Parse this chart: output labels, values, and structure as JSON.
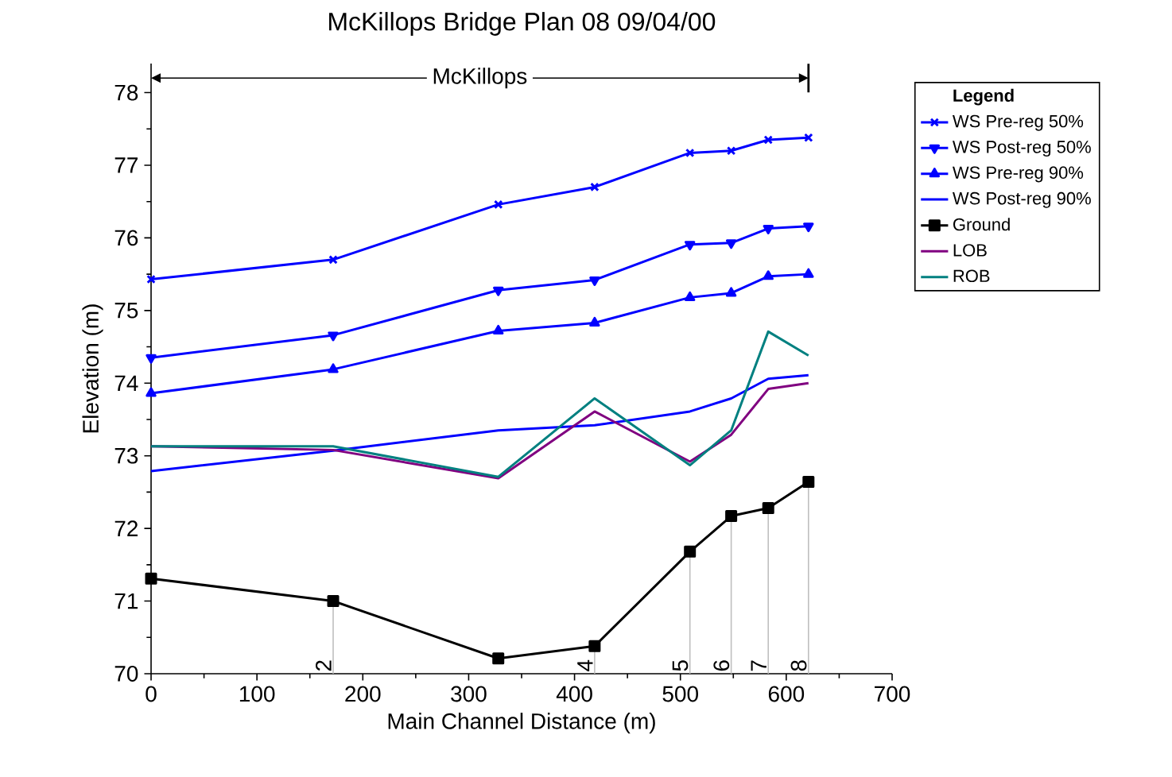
{
  "chart_data": {
    "type": "line",
    "title": "McKillops Bridge   Plan 08     09/04/00",
    "xlabel": "Main Channel Distance (m)",
    "ylabel": "Elevation (m)",
    "legend_title": "Legend",
    "legend": "right",
    "xlim": [
      0,
      700
    ],
    "ylim": [
      70,
      78.4
    ],
    "xticks": [
      0,
      100,
      200,
      300,
      400,
      500,
      600,
      700
    ],
    "yticks": [
      70,
      71,
      72,
      73,
      74,
      75,
      76,
      77,
      78
    ],
    "grid": false,
    "x": [
      0,
      172,
      328,
      419,
      509,
      548,
      583,
      621
    ],
    "series": [
      {
        "name": "WS  Pre-reg 50%",
        "color": "#0000ff",
        "marker": "cross",
        "values": [
          75.43,
          75.7,
          76.46,
          76.7,
          77.17,
          77.2,
          77.35,
          77.38
        ]
      },
      {
        "name": "WS  Post-reg 50%",
        "color": "#0000ff",
        "marker": "triangle-down",
        "values": [
          74.35,
          74.66,
          75.28,
          75.42,
          75.91,
          75.93,
          76.13,
          76.16
        ]
      },
      {
        "name": "WS  Pre-reg 90%",
        "color": "#0000ff",
        "marker": "triangle",
        "values": [
          73.86,
          74.19,
          74.72,
          74.83,
          75.18,
          75.24,
          75.47,
          75.5
        ]
      },
      {
        "name": "WS  Post-reg 90%",
        "color": "#0000ff",
        "marker": "none",
        "values": [
          72.79,
          73.07,
          73.35,
          73.42,
          73.61,
          73.79,
          74.06,
          74.11
        ]
      },
      {
        "name": "Ground",
        "color": "#000000",
        "marker": "square",
        "values": [
          71.31,
          71.0,
          70.21,
          70.38,
          71.68,
          72.17,
          72.28,
          72.64
        ]
      },
      {
        "name": "LOB",
        "color": "#800080",
        "marker": "none",
        "values": [
          73.13,
          73.08,
          72.69,
          73.61,
          72.92,
          73.29,
          73.92,
          74.0
        ]
      },
      {
        "name": "ROB",
        "color": "#008080",
        "marker": "none",
        "values": [
          73.13,
          73.13,
          72.71,
          73.79,
          72.87,
          73.35,
          74.71,
          74.38
        ]
      }
    ],
    "annotations": [
      "McKillops",
      {
        "text": "2",
        "x": 172,
        "y": 71.0
      },
      {
        "text": "4",
        "x": 419,
        "y": 70.38
      },
      {
        "text": "5",
        "x": 509,
        "y": 71.68
      },
      {
        "text": "6",
        "x": 548,
        "y": 72.17
      },
      {
        "text": "7",
        "x": 583,
        "y": 72.28
      },
      {
        "text": "8",
        "x": 621,
        "y": 72.64
      }
    ]
  }
}
